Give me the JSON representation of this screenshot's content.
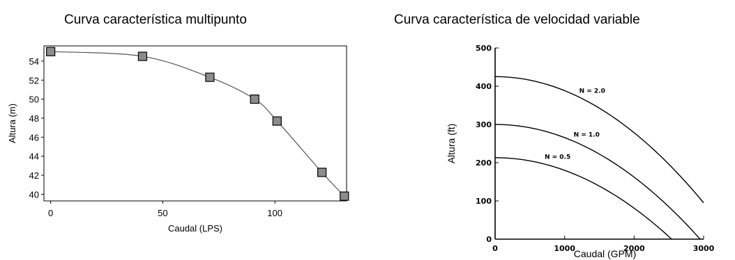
{
  "chart_data": [
    {
      "type": "line",
      "title": "Curva característica multipunto",
      "xlabel": "Caudal (LPS)",
      "ylabel": "Altura (m)",
      "xlim": [
        -3,
        132
      ],
      "ylim": [
        39.3,
        55.6
      ],
      "xticks": [
        0,
        50,
        100
      ],
      "yticks": [
        40,
        42,
        44,
        46,
        48,
        50,
        52,
        54
      ],
      "markers": "square",
      "series": [
        {
          "x": [
            0,
            41,
            71,
            91,
            101,
            121,
            131
          ],
          "y": [
            55.0,
            54.5,
            52.3,
            50.0,
            47.7,
            42.3,
            39.8
          ]
        }
      ]
    },
    {
      "type": "line",
      "title": "Curva característica de velocidad variable",
      "xlabel": "Caudal (GPM)",
      "ylabel": "Altura (ft)",
      "xlim": [
        0,
        3000
      ],
      "ylim": [
        0,
        500
      ],
      "xticks": [
        0,
        1000,
        2000,
        3000
      ],
      "yticks": [
        0,
        100,
        200,
        300,
        400,
        500
      ],
      "series": [
        {
          "name": "N = 2.0",
          "shutoff": 425,
          "max_flow": 3000,
          "y_at_max": 95
        },
        {
          "name": "N = 1.0",
          "shutoff": 300,
          "max_flow": 2950,
          "y_at_max": 0
        },
        {
          "name": "N = 0.5",
          "shutoff": 213,
          "max_flow": 2540,
          "y_at_max": 0
        }
      ]
    }
  ]
}
